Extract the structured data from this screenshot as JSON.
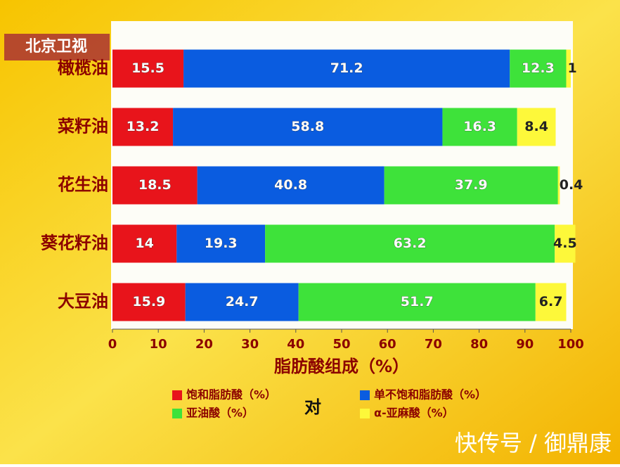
{
  "chart_data": {
    "type": "stacked-bar-horizontal",
    "xlabel": "脂肪酸组成（%）",
    "categories": [
      "橄榄油",
      "菜籽油",
      "花生油",
      "葵花籽油",
      "大豆油"
    ],
    "series": [
      {
        "name": "饱和脂肪酸（%）",
        "color": "#e8141b",
        "values": [
          15.5,
          13.2,
          18.5,
          14,
          15.9
        ]
      },
      {
        "name": "单不饱和脂肪酸（%）",
        "color": "#0a5ce0",
        "values": [
          71.2,
          58.8,
          40.8,
          19.3,
          24.7
        ]
      },
      {
        "name": "亚油酸（%）",
        "color": "#3ee23a",
        "values": [
          12.3,
          16.3,
          37.9,
          63.2,
          51.7
        ]
      },
      {
        "name": "α-亚麻酸（%）",
        "color": "#fdf83a",
        "values": [
          1,
          8.4,
          0.4,
          4.5,
          6.7
        ]
      }
    ],
    "xlim": [
      0,
      100
    ],
    "xticks": [
      0,
      10,
      20,
      30,
      40,
      50,
      60,
      70,
      80,
      90,
      100
    ]
  },
  "overlay": {
    "channel_logo": "北京卫视",
    "subtitle": "对",
    "watermark": "快传号 / 御鼎康"
  }
}
